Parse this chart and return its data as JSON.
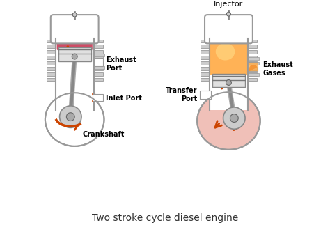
{
  "title": "Two stroke cycle diesel engine",
  "title_fontsize": 10,
  "title_color": "#333333",
  "bg_color": "#ffffff",
  "labels": {
    "injector": "Injector",
    "exhaust_port": "Exhaust\nPort",
    "inlet_port": "Inlet Port",
    "crankshaft": "Crankshaft",
    "transfer_port": "Transfer\nPort",
    "exhaust_gases": "Exhaust\nGases"
  },
  "arrow_color": "#cc4400",
  "cyl_edge": "#999999",
  "piston_color": "#d8d8d8",
  "combustion_left": "#bb1133",
  "combustion_right": "#ffaa44",
  "crankcase_right_fill": "#f0c0b8",
  "fin_color": "#cccccc",
  "fin_edge": "#999999",
  "body_fill": "#ffffff",
  "body_edge": "#aaaaaa"
}
